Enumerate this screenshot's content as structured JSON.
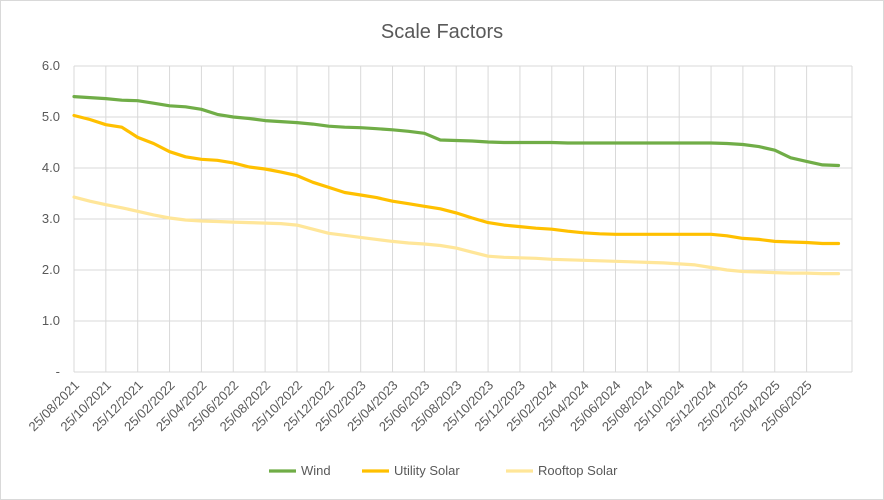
{
  "chart_data": {
    "type": "line",
    "title": "Scale Factors",
    "xlabel": "",
    "ylabel": "",
    "ylim": [
      0,
      6
    ],
    "y_ticks": [
      {
        "value": 0,
        "label": "-"
      },
      {
        "value": 1,
        "label": "1.0"
      },
      {
        "value": 2,
        "label": "2.0"
      },
      {
        "value": 3,
        "label": "3.0"
      },
      {
        "value": 4,
        "label": "4.0"
      },
      {
        "value": 5,
        "label": "5.0"
      },
      {
        "value": 6,
        "label": "6.0"
      }
    ],
    "x_tick_labels": [
      "25/08/2021",
      "25/10/2021",
      "25/12/2021",
      "25/02/2022",
      "25/04/2022",
      "25/06/2022",
      "25/08/2022",
      "25/10/2022",
      "25/12/2022",
      "25/02/2023",
      "25/04/2023",
      "25/06/2023",
      "25/08/2023",
      "25/10/2023",
      "25/12/2023",
      "25/02/2024",
      "25/04/2024",
      "25/06/2024",
      "25/08/2024",
      "25/10/2024",
      "25/12/2024",
      "25/02/2025",
      "25/04/2025",
      "25/06/2025"
    ],
    "x": [
      "25/08/2021",
      "25/09/2021",
      "25/10/2021",
      "25/11/2021",
      "25/12/2021",
      "25/01/2022",
      "25/02/2022",
      "25/03/2022",
      "25/04/2022",
      "25/05/2022",
      "25/06/2022",
      "25/07/2022",
      "25/08/2022",
      "25/09/2022",
      "25/10/2022",
      "25/11/2022",
      "25/12/2022",
      "25/01/2023",
      "25/02/2023",
      "25/03/2023",
      "25/04/2023",
      "25/05/2023",
      "25/06/2023",
      "25/07/2023",
      "25/08/2023",
      "25/09/2023",
      "25/10/2023",
      "25/11/2023",
      "25/12/2023",
      "25/01/2024",
      "25/02/2024",
      "25/03/2024",
      "25/04/2024",
      "25/05/2024",
      "25/06/2024",
      "25/07/2024",
      "25/08/2024",
      "25/09/2024",
      "25/10/2024",
      "25/11/2024",
      "25/12/2024",
      "25/01/2025",
      "25/02/2025",
      "25/03/2025",
      "25/04/2025",
      "25/05/2025",
      "25/06/2025",
      "25/07/2025",
      "25/08/2025"
    ],
    "series": [
      {
        "name": "Wind",
        "color": "#70ad47",
        "values": [
          5.4,
          5.38,
          5.36,
          5.33,
          5.32,
          5.27,
          5.22,
          5.2,
          5.15,
          5.05,
          5.0,
          4.97,
          4.93,
          4.91,
          4.89,
          4.86,
          4.82,
          4.8,
          4.79,
          4.77,
          4.75,
          4.72,
          4.68,
          4.55,
          4.54,
          4.53,
          4.51,
          4.5,
          4.5,
          4.5,
          4.5,
          4.49,
          4.49,
          4.49,
          4.49,
          4.49,
          4.49,
          4.49,
          4.49,
          4.49,
          4.49,
          4.48,
          4.46,
          4.42,
          4.35,
          4.2,
          4.13,
          4.06,
          4.05
        ]
      },
      {
        "name": "Utility Solar",
        "color": "#ffc000",
        "values": [
          5.03,
          4.95,
          4.85,
          4.8,
          4.6,
          4.48,
          4.32,
          4.22,
          4.17,
          4.15,
          4.1,
          4.02,
          3.98,
          3.92,
          3.85,
          3.72,
          3.62,
          3.52,
          3.47,
          3.42,
          3.35,
          3.3,
          3.25,
          3.2,
          3.12,
          3.02,
          2.93,
          2.88,
          2.85,
          2.82,
          2.8,
          2.76,
          2.73,
          2.71,
          2.7,
          2.7,
          2.7,
          2.7,
          2.7,
          2.7,
          2.7,
          2.67,
          2.62,
          2.6,
          2.56,
          2.55,
          2.54,
          2.52,
          2.52
        ]
      },
      {
        "name": "Rooftop Solar",
        "color": "#ffe699",
        "values": [
          3.43,
          3.35,
          3.28,
          3.22,
          3.15,
          3.08,
          3.02,
          2.98,
          2.96,
          2.95,
          2.94,
          2.93,
          2.92,
          2.91,
          2.88,
          2.8,
          2.72,
          2.68,
          2.64,
          2.6,
          2.56,
          2.53,
          2.51,
          2.48,
          2.43,
          2.35,
          2.27,
          2.25,
          2.24,
          2.23,
          2.21,
          2.2,
          2.19,
          2.18,
          2.17,
          2.16,
          2.15,
          2.14,
          2.12,
          2.1,
          2.05,
          2.0,
          1.97,
          1.96,
          1.95,
          1.94,
          1.94,
          1.93,
          1.93
        ]
      }
    ],
    "grid": true,
    "legend_position": "bottom"
  }
}
